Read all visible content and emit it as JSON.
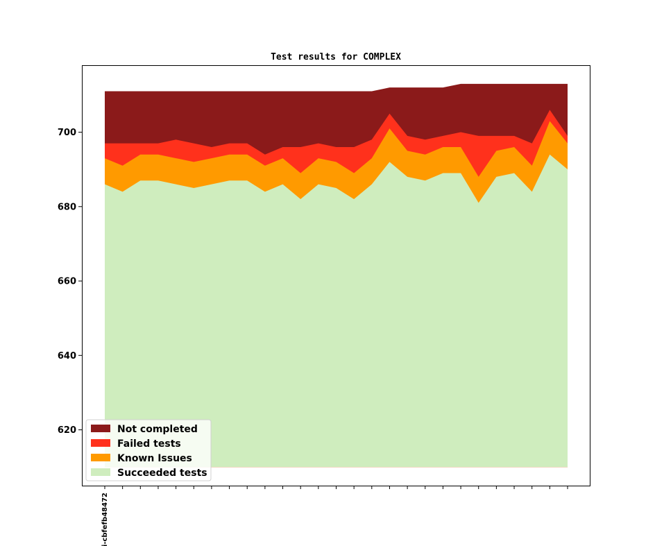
{
  "chart_data": {
    "type": "area",
    "title": "Test results for COMPLEX",
    "xlabel": "",
    "ylabel": "",
    "ylim": [
      605,
      718
    ],
    "yticks": [
      620,
      640,
      660,
      680,
      700
    ],
    "x_tick_labels": [
      "i-cbfefb48472"
    ],
    "n_points": 27,
    "baseline": 610,
    "legend_position": "lower-left",
    "grid": false,
    "series": [
      {
        "name": "Succeeded tests",
        "color": "#cfedbe",
        "values": [
          686,
          684,
          687,
          687,
          686,
          685,
          686,
          687,
          687,
          684,
          686,
          682,
          686,
          685,
          682,
          686,
          692,
          688,
          687,
          689,
          689,
          681,
          688,
          689,
          684,
          694,
          690
        ]
      },
      {
        "name": "Known Issues",
        "color": "#ff9a00",
        "values": [
          693,
          691,
          694,
          694,
          693,
          692,
          693,
          694,
          694,
          691,
          693,
          689,
          693,
          692,
          689,
          693,
          701,
          695,
          694,
          696,
          696,
          688,
          695,
          696,
          691,
          703,
          697
        ]
      },
      {
        "name": "Failed tests",
        "color": "#ff311c",
        "values": [
          697,
          697,
          697,
          697,
          698,
          697,
          696,
          697,
          697,
          694,
          696,
          696,
          697,
          696,
          696,
          698,
          705,
          699,
          698,
          699,
          700,
          699,
          699,
          699,
          697,
          706,
          699
        ]
      },
      {
        "name": "Not completed",
        "color": "#8b1a1a",
        "values": [
          711,
          711,
          711,
          711,
          711,
          711,
          711,
          711,
          711,
          711,
          711,
          711,
          711,
          711,
          711,
          711,
          712,
          712,
          712,
          712,
          713,
          713,
          713,
          713,
          713,
          713,
          713
        ]
      }
    ]
  }
}
